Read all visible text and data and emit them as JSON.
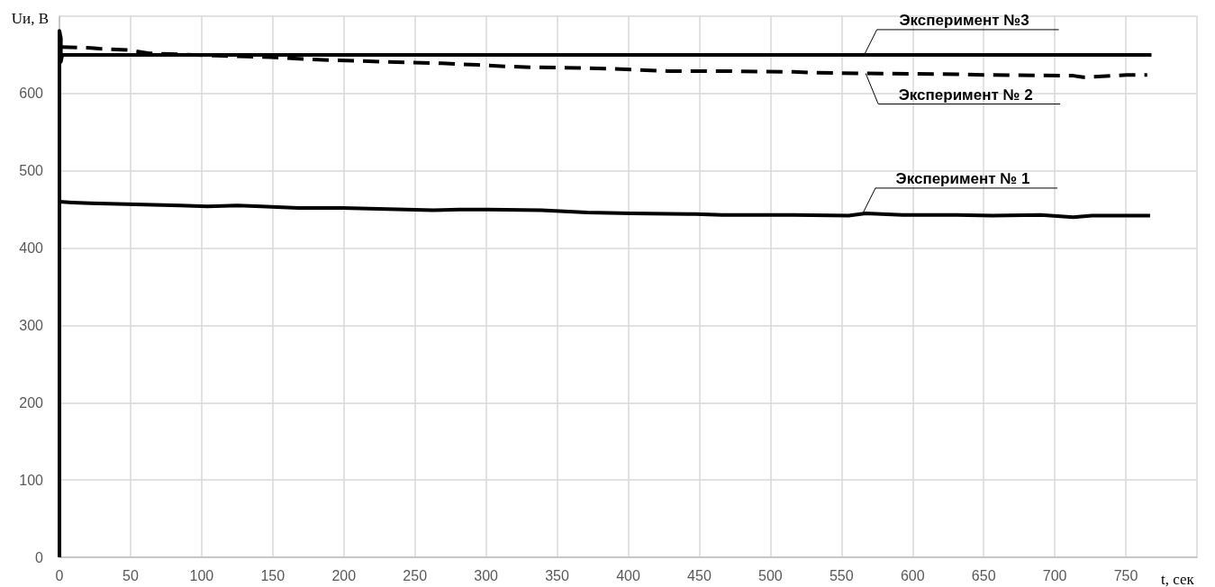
{
  "chart_data": {
    "type": "line",
    "xlabel": "t, сек",
    "ylabel": "Uи, В",
    "xlim": [
      0,
      800
    ],
    "xticks": [
      0,
      50,
      100,
      150,
      200,
      250,
      300,
      350,
      400,
      450,
      500,
      550,
      600,
      650,
      700,
      750,
      {
        "value": 800,
        "label": null
      }
    ],
    "ylim": [
      0,
      700
    ],
    "yticks": [
      0,
      100,
      200,
      300,
      400,
      500,
      600,
      {
        "value": 700,
        "label": null
      }
    ],
    "grid": true,
    "marker": "none",
    "series": [
      {
        "color": "#000000",
        "line_style": "solid",
        "x": [
          0,
          9,
          22,
          47,
          66,
          85,
          104,
          125,
          142,
          168,
          199,
          244,
          263,
          282,
          301,
          339,
          371,
          402,
          447,
          466,
          516,
          555,
          567,
          593,
          631,
          656,
          690,
          713,
          726,
          767
        ],
        "values": [
          460,
          459,
          458,
          457,
          456,
          455,
          454,
          455,
          454,
          452,
          452,
          450,
          449,
          450,
          450,
          449,
          446,
          445,
          444,
          443,
          443,
          442,
          445,
          443,
          443,
          442,
          443,
          440,
          442,
          442
        ]
      },
      {
        "color": "#000000",
        "line_style": "dashed",
        "x": [
          1,
          22,
          28,
          50,
          63,
          110,
          148,
          168,
          193,
          212,
          248,
          269,
          294,
          313,
          332,
          371,
          402,
          428,
          466,
          516,
          529,
          567,
          631,
          650,
          713,
          720,
          751,
          765
        ],
        "values": [
          660,
          659,
          658,
          656,
          652,
          649,
          647,
          645,
          643,
          642,
          640,
          639,
          637,
          635,
          634,
          633,
          631,
          629,
          629,
          628,
          627,
          626,
          625,
          624,
          623,
          621,
          624,
          624
        ]
      },
      {
        "color": "#000000",
        "line_style": "solid",
        "x": [
          0,
          0,
          1,
          1,
          2,
          100,
          200,
          300,
          400,
          500,
          600,
          700,
          768
        ],
        "values": [
          0,
          681,
          672,
          641,
          650,
          650,
          650,
          650,
          650,
          650,
          650,
          650,
          650
        ]
      }
    ],
    "annotations": [
      {
        "text": "Эксперимент №3",
        "x": 566,
        "y": 650
      },
      {
        "text": "Эксперимент № 2",
        "x": 567,
        "y": 626
      },
      {
        "text": "Эксперимент № 1",
        "x": 565,
        "y": 445
      }
    ]
  }
}
